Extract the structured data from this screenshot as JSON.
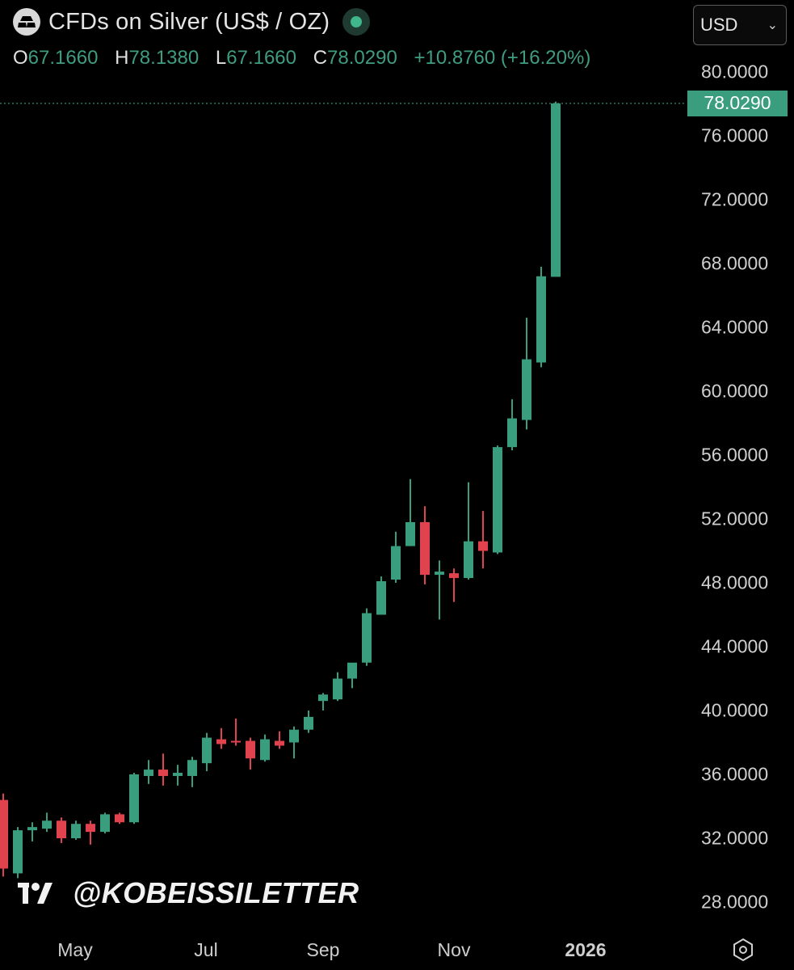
{
  "header": {
    "title": "CFDs on Silver (US$ / OZ)",
    "ohlc": {
      "o_label": "O",
      "o": "67.1660",
      "h_label": "H",
      "h": "78.1380",
      "l_label": "L",
      "l": "67.1660",
      "c_label": "C",
      "c": "78.0290",
      "change": "+10.8760 (+16.20%)"
    }
  },
  "currency_select": {
    "value": "USD"
  },
  "watermark": {
    "handle": "@KOBEISSILETTER",
    "logo_icon": "tradingview-logo-icon"
  },
  "price_tag": "78.0290",
  "colors": {
    "up": "#3a9d7e",
    "down": "#e0434d",
    "background": "#000000",
    "accent": "#3a9d7e"
  },
  "chart_data": {
    "type": "candlestick",
    "title": "CFDs on Silver (US$ / OZ)",
    "y_range": [
      26,
      83
    ],
    "y_ticks": [
      "80.0000",
      "76.0000",
      "72.0000",
      "68.0000",
      "64.0000",
      "60.0000",
      "56.0000",
      "52.0000",
      "48.0000",
      "44.0000",
      "40.0000",
      "36.0000",
      "32.0000",
      "28.0000"
    ],
    "x_ticks": [
      "May",
      "Jul",
      "Sep",
      "Nov",
      "2026"
    ],
    "last_price": 78.029,
    "grid": false,
    "candles": [
      {
        "o": 34.4,
        "h": 34.8,
        "l": 29.6,
        "c": 30.1
      },
      {
        "o": 29.8,
        "h": 32.7,
        "l": 29.5,
        "c": 32.5
      },
      {
        "o": 32.5,
        "h": 33.0,
        "l": 31.8,
        "c": 32.7
      },
      {
        "o": 32.6,
        "h": 33.6,
        "l": 32.4,
        "c": 33.1
      },
      {
        "o": 33.1,
        "h": 33.3,
        "l": 31.7,
        "c": 32.0
      },
      {
        "o": 32.0,
        "h": 33.1,
        "l": 31.9,
        "c": 32.9
      },
      {
        "o": 32.9,
        "h": 33.1,
        "l": 31.6,
        "c": 32.4
      },
      {
        "o": 32.4,
        "h": 33.6,
        "l": 32.3,
        "c": 33.5
      },
      {
        "o": 33.5,
        "h": 33.6,
        "l": 32.9,
        "c": 33.0
      },
      {
        "o": 33.0,
        "h": 36.1,
        "l": 32.9,
        "c": 36.0
      },
      {
        "o": 35.9,
        "h": 36.9,
        "l": 35.4,
        "c": 36.3
      },
      {
        "o": 36.3,
        "h": 37.3,
        "l": 35.3,
        "c": 35.9
      },
      {
        "o": 35.9,
        "h": 36.6,
        "l": 35.3,
        "c": 36.1
      },
      {
        "o": 35.9,
        "h": 37.1,
        "l": 35.2,
        "c": 36.9
      },
      {
        "o": 36.7,
        "h": 38.6,
        "l": 36.2,
        "c": 38.3
      },
      {
        "o": 38.2,
        "h": 38.9,
        "l": 37.6,
        "c": 37.9
      },
      {
        "o": 38.1,
        "h": 39.5,
        "l": 37.8,
        "c": 38.0
      },
      {
        "o": 38.1,
        "h": 38.3,
        "l": 36.3,
        "c": 37.0
      },
      {
        "o": 36.9,
        "h": 38.5,
        "l": 36.8,
        "c": 38.2
      },
      {
        "o": 38.1,
        "h": 38.7,
        "l": 37.6,
        "c": 37.8
      },
      {
        "o": 38.0,
        "h": 39.0,
        "l": 37.0,
        "c": 38.8
      },
      {
        "o": 38.8,
        "h": 40.0,
        "l": 38.6,
        "c": 39.6
      },
      {
        "o": 40.6,
        "h": 41.1,
        "l": 40.0,
        "c": 41.0
      },
      {
        "o": 40.7,
        "h": 42.4,
        "l": 40.6,
        "c": 42.0
      },
      {
        "o": 42.0,
        "h": 42.9,
        "l": 41.4,
        "c": 43.0
      },
      {
        "o": 43.0,
        "h": 46.4,
        "l": 42.8,
        "c": 46.1
      },
      {
        "o": 46.0,
        "h": 48.4,
        "l": 46.0,
        "c": 48.1
      },
      {
        "o": 48.2,
        "h": 51.2,
        "l": 48.0,
        "c": 50.3
      },
      {
        "o": 50.3,
        "h": 54.5,
        "l": 50.3,
        "c": 51.8
      },
      {
        "o": 51.8,
        "h": 52.8,
        "l": 47.9,
        "c": 48.5
      },
      {
        "o": 48.5,
        "h": 49.4,
        "l": 45.7,
        "c": 48.7
      },
      {
        "o": 48.6,
        "h": 48.9,
        "l": 46.8,
        "c": 48.3
      },
      {
        "o": 48.3,
        "h": 54.3,
        "l": 48.2,
        "c": 50.6
      },
      {
        "o": 50.6,
        "h": 52.5,
        "l": 48.9,
        "c": 50.0
      },
      {
        "o": 49.9,
        "h": 56.6,
        "l": 49.8,
        "c": 56.5
      },
      {
        "o": 56.5,
        "h": 59.5,
        "l": 56.3,
        "c": 58.3
      },
      {
        "o": 58.2,
        "h": 64.6,
        "l": 57.6,
        "c": 62.0
      },
      {
        "o": 61.8,
        "h": 67.8,
        "l": 61.5,
        "c": 67.2
      },
      {
        "o": 67.166,
        "h": 78.138,
        "l": 67.166,
        "c": 78.029
      }
    ]
  }
}
